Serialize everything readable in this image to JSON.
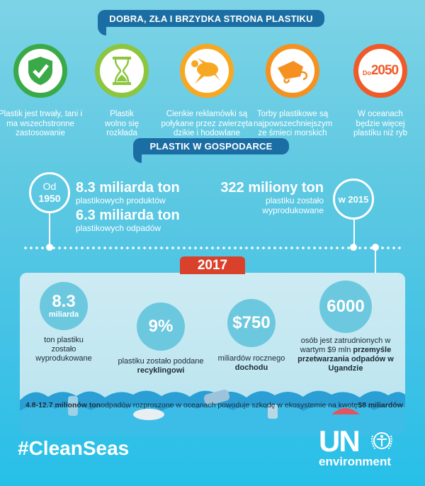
{
  "section1": {
    "title": "DOBRA, ZŁA I BRZYDKA STRONA PLASTIKU",
    "items": [
      {
        "icon": "shield-check-icon",
        "color": "#3aaa48",
        "caption": "Plastik jest trwały, tani i ma wszechstronne zastosowanie"
      },
      {
        "icon": "hourglass-icon",
        "color": "#8cc63f",
        "caption": "Plastik wolno się rozkłada"
      },
      {
        "icon": "turtle-icon",
        "color": "#f7a823",
        "caption": "Cienkie reklamówki są połykane przez zwierzęta dzikie i hodowlane"
      },
      {
        "icon": "plastic-bag-icon",
        "color": "#f59121",
        "caption": "Torby plastikowe są najpowszechniejszym ze śmieci morskich"
      },
      {
        "icon": "year-badge-icon",
        "color": "#ef5a28",
        "badge_prefix": "Do",
        "badge_year": "2050",
        "caption": "W oceanach będzie więcej plastiku niż ryb"
      }
    ]
  },
  "section2": {
    "title": "PLASTIK W GOSPODARCE",
    "from_label": "Od",
    "from_year": "1950",
    "stat1_value": "8.3 miliarda ton",
    "stat1_desc": "plastikowych produktów",
    "stat2_value": "6.3 miliarda ton",
    "stat2_desc": "plastikowych odpadów",
    "stat3_value": "322 miliony ton",
    "stat3_desc1": "plastiku zostało",
    "stat3_desc2": "wyprodukowane",
    "year_label": "w 2015"
  },
  "section3": {
    "year": "2017",
    "stats": [
      {
        "value": "8.3",
        "unit": "miliarda",
        "desc": "ton plastiku zostało wyprodukowane"
      },
      {
        "value": "9%",
        "desc": "plastiku zostało poddane",
        "desc_bold": "recyklingowi"
      },
      {
        "value": "$750",
        "desc": "miliardów rocznego",
        "desc_bold": "dochodu"
      },
      {
        "value": "6000",
        "desc": "osób jest zatrudnionych w wartym $9 mln",
        "desc_bold": "przemyśle przetwarzania odpadów w Ugandzie"
      }
    ],
    "bottom_left": "4.8-12.7 milionów ton",
    "bottom_mid": "odpadów rozproszone w oceanach powoduje szkodę w ekosystemie na kwotę",
    "bottom_right": "$8 miliardów"
  },
  "footer": {
    "hashtag": "#CleanSeas",
    "logo_text": "UN",
    "logo_sub": "environment"
  },
  "colors": {
    "banner": "#1b6ea3",
    "year_tag": "#d9412b",
    "stat_circle": "#6cc8de",
    "panel": "#c8eaf2"
  }
}
